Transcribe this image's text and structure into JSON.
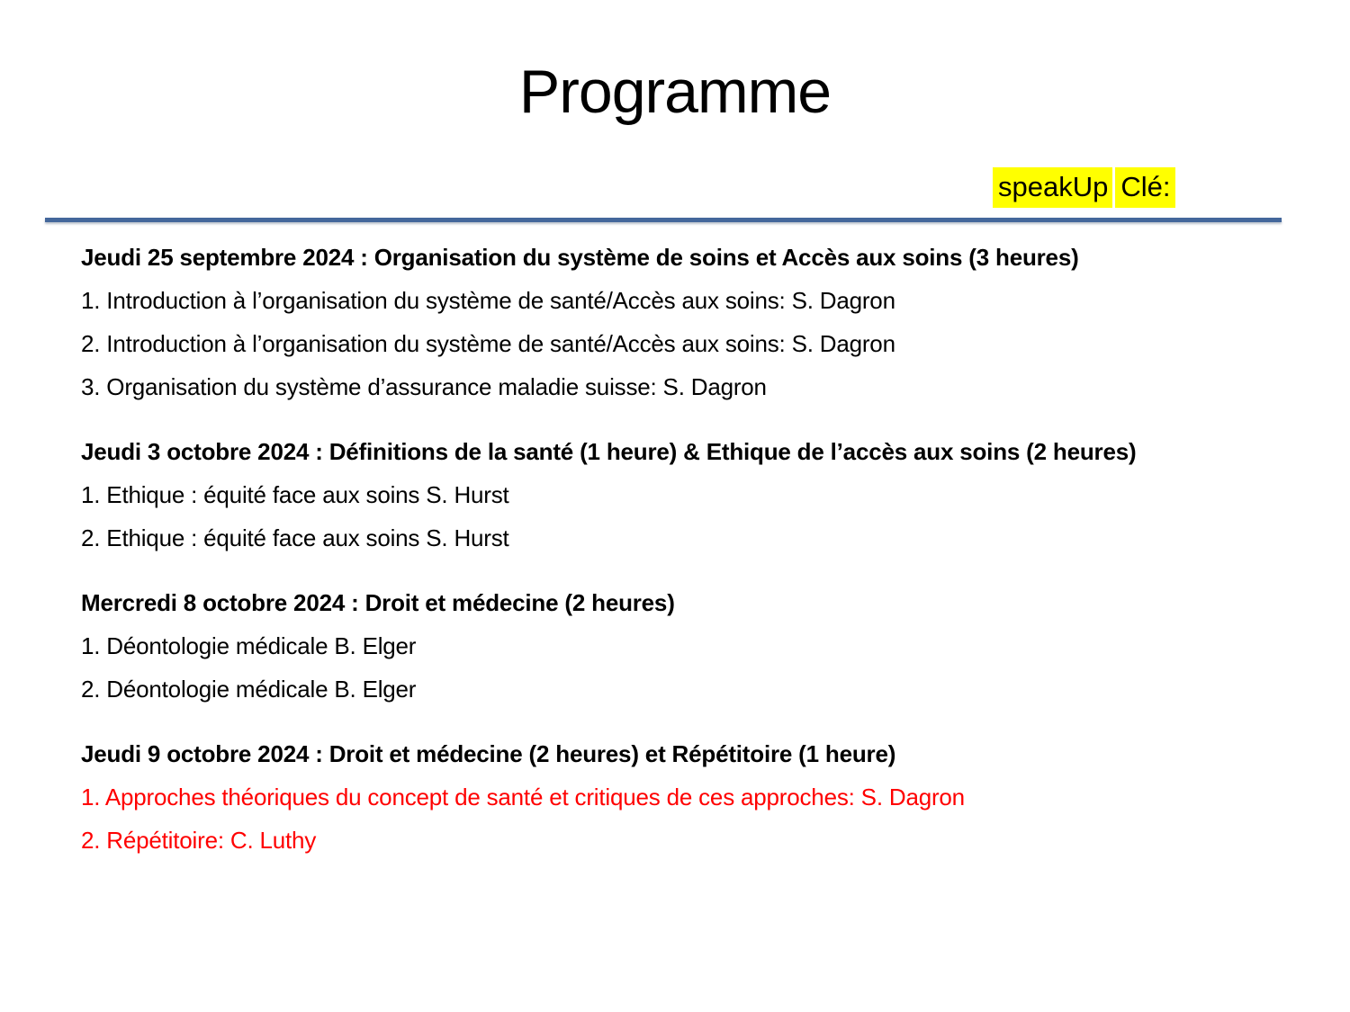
{
  "title": "Programme",
  "speakup": {
    "part1": "speakUp",
    "part2": "Clé:"
  },
  "colors": {
    "highlight": "#FFFF00",
    "divider": "#44679B",
    "red_text": "#FF0000",
    "body_text": "#000000"
  },
  "sections": [
    {
      "header": "Jeudi 25 septembre 2024 : Organisation du système de soins et Accès aux soins (3 heures)",
      "items": [
        {
          "text": "1. Introduction à l’organisation du système de santé/Accès aux soins: S. Dagron"
        },
        {
          "text": "2. Introduction à l’organisation du système de santé/Accès aux soins: S. Dagron"
        },
        {
          "text": "3. Organisation du système d’assurance maladie suisse: S. Dagron"
        }
      ]
    },
    {
      "header": "Jeudi 3 octobre 2024 : Définitions de la santé (1 heure) & Ethique de l’accès aux soins (2 heures)",
      "items": [
        {
          "text": "1. Ethique : équité face aux soins S. Hurst"
        },
        {
          "text": "2. Ethique : équité face aux soins S. Hurst"
        }
      ]
    },
    {
      "header": "Mercredi 8 octobre 2024 : Droit et médecine (2 heures)",
      "items": [
        {
          "text": "1. Déontologie médicale B. Elger"
        },
        {
          "text": "2. Déontologie médicale B. Elger"
        }
      ]
    },
    {
      "header": "Jeudi 9 octobre 2024 : Droit et médecine (2 heures) et Répétitoire (1 heure)",
      "items": [
        {
          "text": "1. Approches théoriques du concept de santé et critiques de ces approches: S. Dagron",
          "emphasis": "red"
        },
        {
          "text": "2. Répétitoire: C. Luthy",
          "emphasis": "red"
        }
      ]
    }
  ]
}
